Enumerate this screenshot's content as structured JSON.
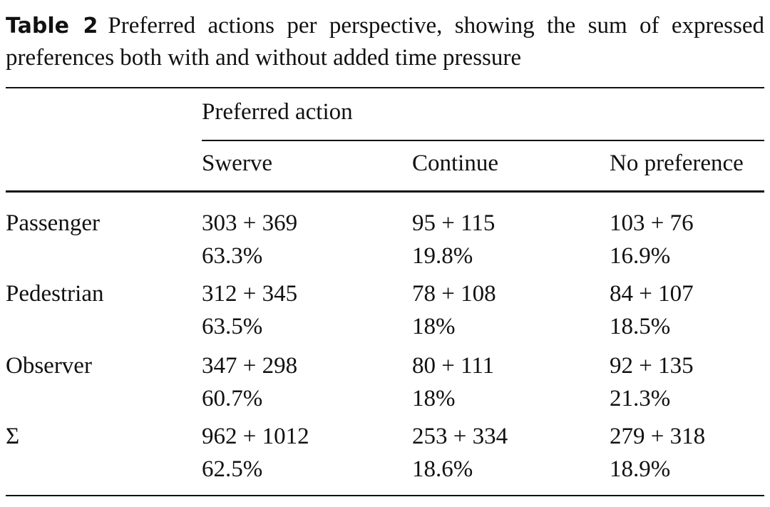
{
  "caption": {
    "label": "Table 2",
    "text": "Preferred actions per perspective, showing the sum of expressed preferences both with and without added time pressure"
  },
  "table": {
    "group_header": "Preferred action",
    "columns": [
      "Swerve",
      "Continue",
      "No preference"
    ],
    "rows": [
      {
        "label": "Passenger",
        "cells": [
          [
            "303 + 369",
            "63.3%"
          ],
          [
            "95 + 115",
            "19.8%"
          ],
          [
            "103 + 76",
            "16.9%"
          ]
        ]
      },
      {
        "label": "Pedestrian",
        "cells": [
          [
            "312 + 345",
            "63.5%"
          ],
          [
            "78 + 108",
            "18%"
          ],
          [
            "84 + 107",
            "18.5%"
          ]
        ]
      },
      {
        "label": "Observer",
        "cells": [
          [
            "347 + 298",
            "60.7%"
          ],
          [
            "80 + 111",
            "18%"
          ],
          [
            "92 + 135",
            "21.3%"
          ]
        ]
      },
      {
        "label": "Σ",
        "cells": [
          [
            "962 + 1012",
            "62.5%"
          ],
          [
            "253 + 334",
            "18.6%"
          ],
          [
            "279 + 318",
            "18.9%"
          ]
        ]
      }
    ]
  }
}
